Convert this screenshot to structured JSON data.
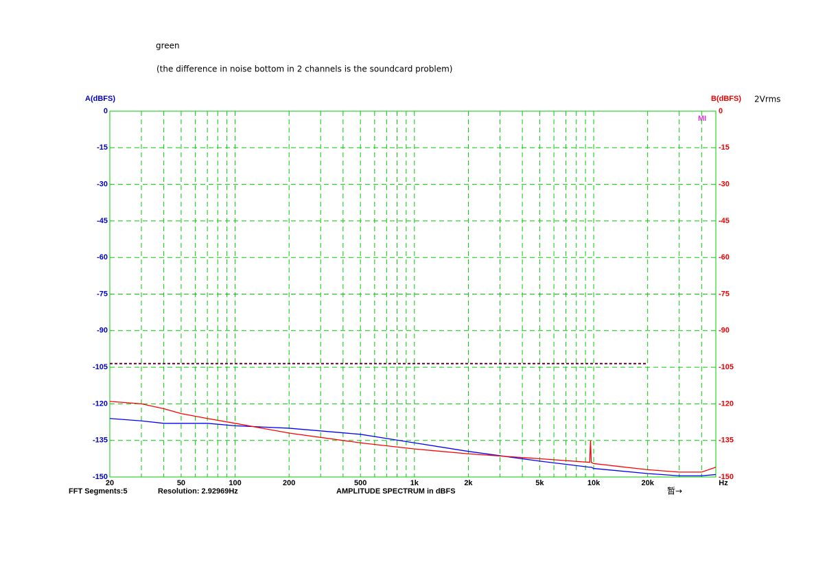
{
  "chart_data": {
    "type": "line",
    "note_title": "green",
    "subtitle": "(the difference in noise bottom in 2 channels is the soundcard problem)",
    "y_label": "A(dBFS)",
    "y2_label": "B(dBFS)",
    "level_label": "2Vrms",
    "logo": "MI",
    "footer_left": "FFT Segments:5",
    "footer_resolution": "Resolution: 2.92969Hz",
    "x_label": "AMPLITUDE SPECTRUM in dBFS",
    "x_unit": "Hz",
    "footer_right": "暂→",
    "xscale": "log",
    "xlim": [
      20,
      48000
    ],
    "xticks": [
      20,
      50,
      100,
      200,
      500,
      {
        "value": 1000,
        "label": "1k"
      },
      {
        "value": 2000,
        "label": "2k"
      },
      {
        "value": 5000,
        "label": "5k"
      },
      {
        "value": 10000,
        "label": "10k"
      },
      {
        "value": 20000,
        "label": "20k"
      }
    ],
    "xminor": [
      30,
      40,
      60,
      70,
      80,
      90,
      300,
      400,
      600,
      700,
      800,
      900,
      3000,
      4000,
      6000,
      7000,
      8000,
      9000,
      30000,
      40000
    ],
    "ylim": [
      -150,
      0
    ],
    "yticks": [
      0,
      -15,
      -30,
      -45,
      -60,
      -75,
      -90,
      -105,
      -120,
      -135,
      -150
    ],
    "y2lim": [
      -150,
      0
    ],
    "y2ticks": [
      0,
      -15,
      -30,
      -45,
      -60,
      -75,
      -90,
      -105,
      -120,
      -135,
      -150
    ],
    "grid": true,
    "grid_color": "#00cc00",
    "reference": {
      "value": -103.5,
      "xlim": [
        20,
        20000
      ],
      "color": "#660033"
    },
    "x": [
      20,
      30,
      40,
      50,
      70,
      100,
      200,
      500,
      1000,
      2000,
      5000,
      9500,
      9600,
      9700,
      10000,
      20000,
      30000,
      40000,
      48000
    ],
    "series": [
      {
        "name": "A",
        "color": "#0000ff",
        "values": [
          -126,
          -127,
          -128,
          -128,
          -128,
          -129,
          -130,
          -132.5,
          -136,
          -139.5,
          -143.5,
          -146,
          -146,
          -146,
          -146.5,
          -148.6,
          -149.5,
          -149.5,
          -149
        ]
      },
      {
        "name": "B",
        "color": "#ff0000",
        "axis": "y2",
        "values": [
          -119,
          -120,
          -122,
          -124,
          -126,
          -128,
          -132,
          -136,
          -138.5,
          -140.5,
          -142.5,
          -144,
          -135,
          -144,
          -144.5,
          -147,
          -148,
          -148,
          -146
        ]
      }
    ]
  }
}
